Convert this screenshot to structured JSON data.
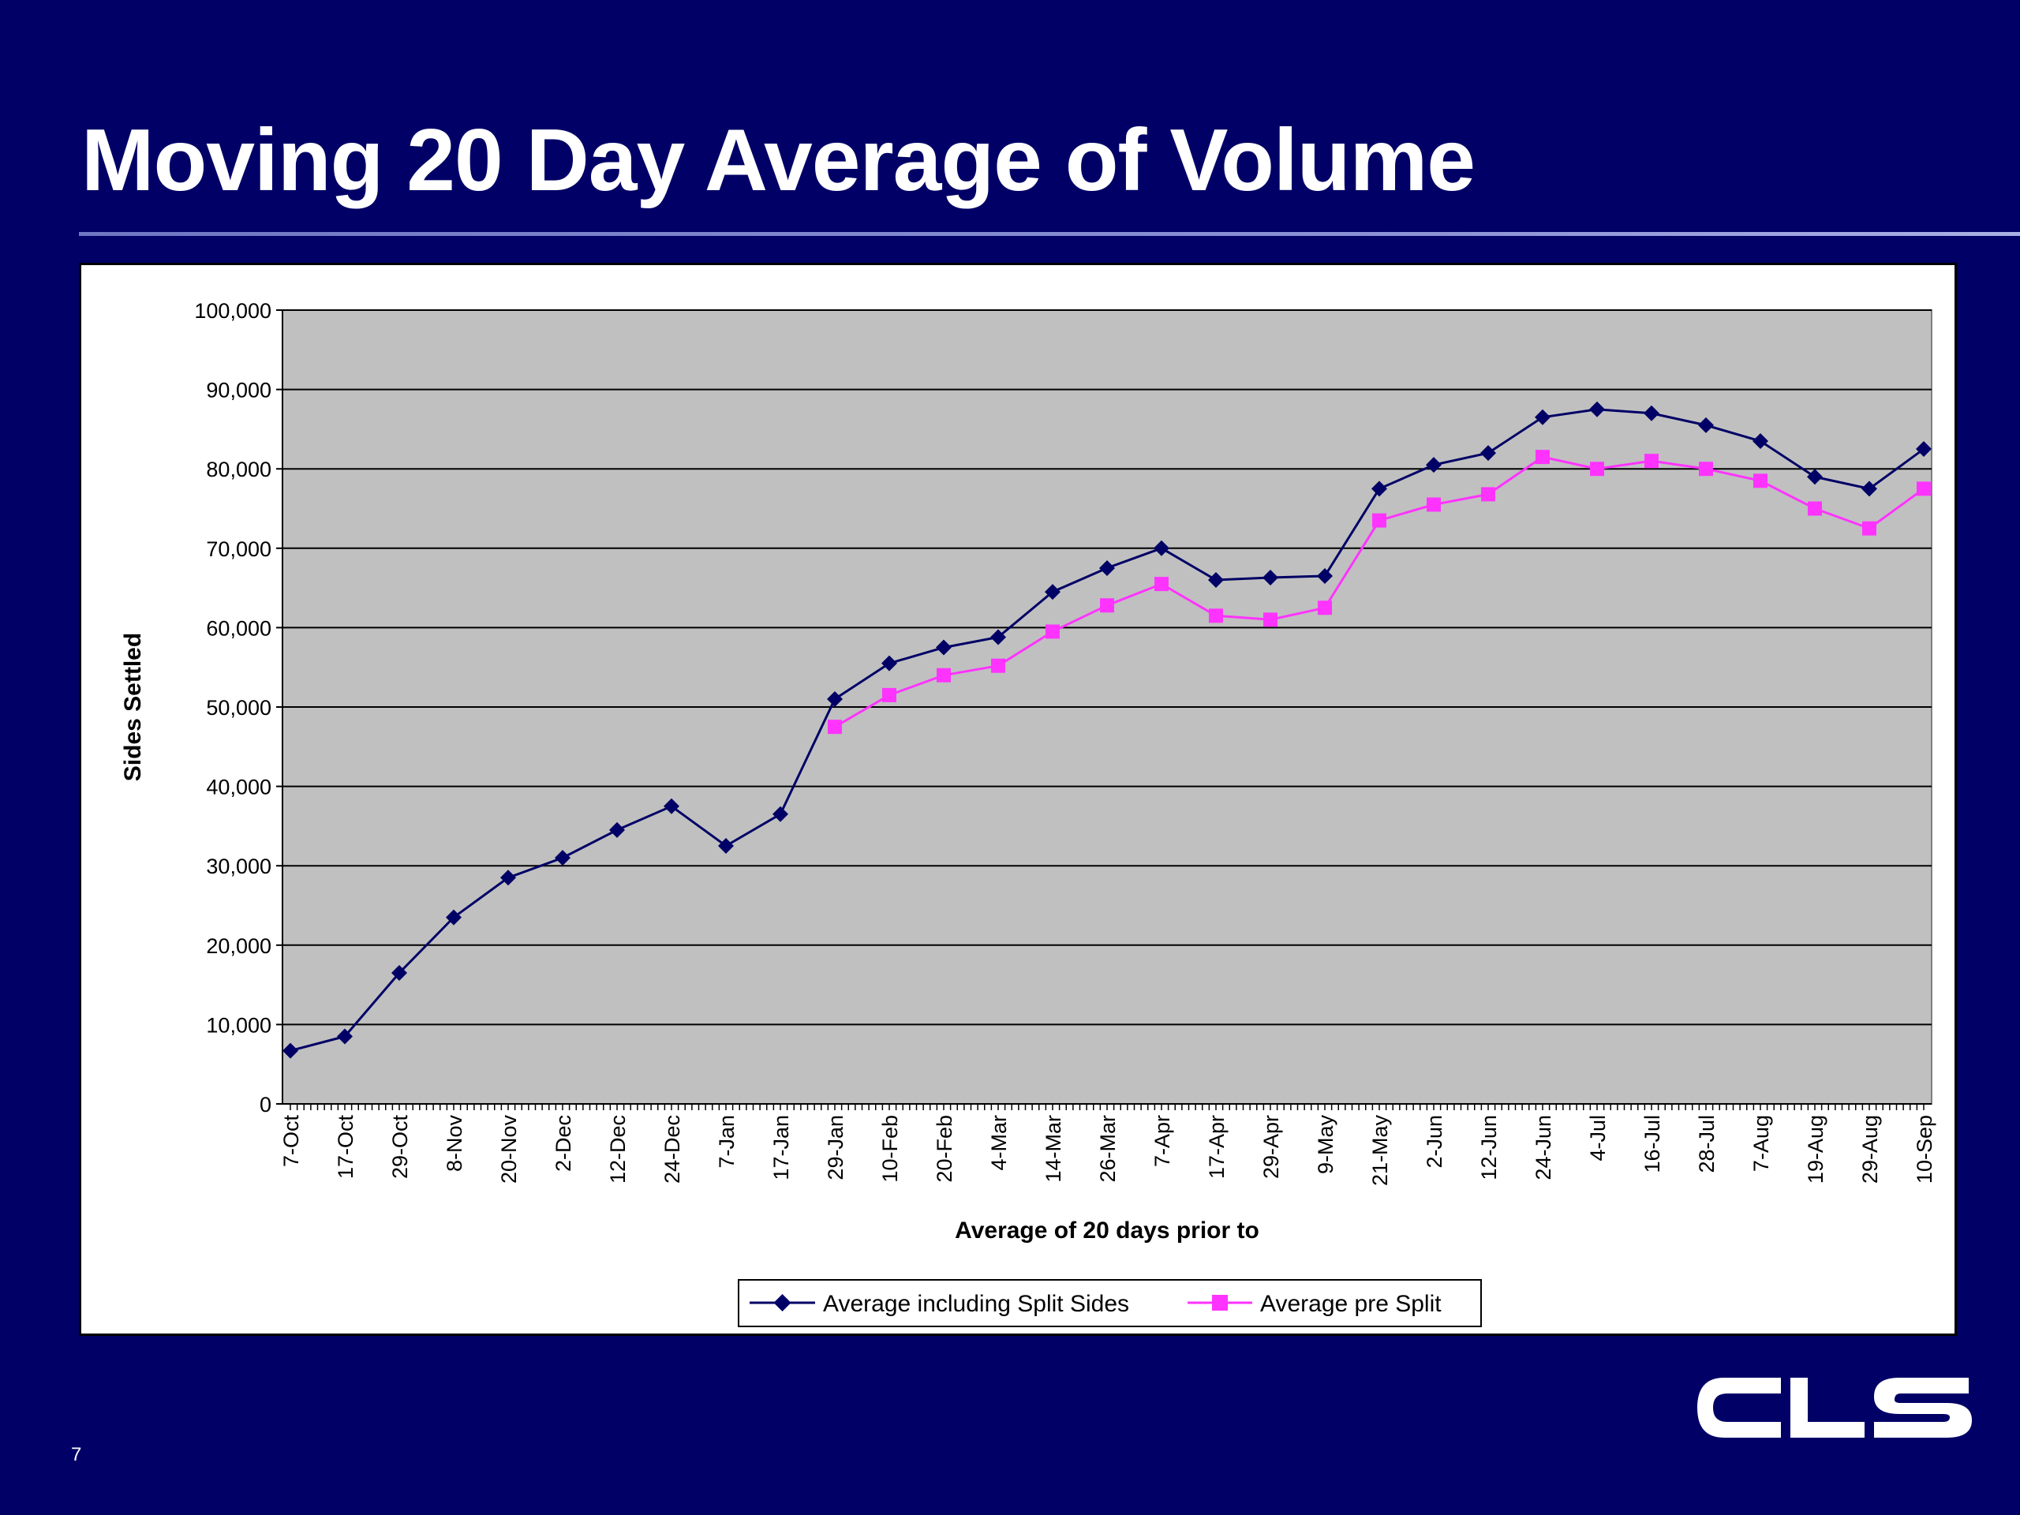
{
  "slide": {
    "title": "Moving 20 Day Average of Volume",
    "page_number": "7",
    "logo_text": "CLS",
    "background_color": "#000066"
  },
  "chart_data": {
    "type": "line",
    "title": "",
    "xlabel": "Average of 20 days prior to",
    "ylabel": "Sides Settled",
    "ylim": [
      0,
      100000
    ],
    "yticks": [
      "0",
      "10,000",
      "20,000",
      "30,000",
      "40,000",
      "50,000",
      "60,000",
      "70,000",
      "80,000",
      "90,000",
      "100,000"
    ],
    "grid": "horizontal",
    "plot_background": "#c0c0c0",
    "legend_position": "bottom",
    "x": [
      "7-Oct",
      "17-Oct",
      "29-Oct",
      "8-Nov",
      "20-Nov",
      "2-Dec",
      "12-Dec",
      "24-Dec",
      "7-Jan",
      "17-Jan",
      "29-Jan",
      "10-Feb",
      "20-Feb",
      "4-Mar",
      "14-Mar",
      "26-Mar",
      "7-Apr",
      "17-Apr",
      "29-Apr",
      "9-May",
      "21-May",
      "2-Jun",
      "12-Jun",
      "24-Jun",
      "4-Jul",
      "16-Jul",
      "28-Jul",
      "7-Aug",
      "19-Aug",
      "29-Aug",
      "10-Sep"
    ],
    "series": [
      {
        "name": "Average including Split Sides",
        "color": "#000066",
        "marker": "diamond",
        "values": [
          6700,
          8500,
          16500,
          23500,
          28500,
          31000,
          34500,
          37500,
          32500,
          36500,
          51000,
          55500,
          57500,
          58800,
          64500,
          67500,
          70000,
          66000,
          66300,
          66500,
          77500,
          80500,
          82000,
          86500,
          87500,
          87000,
          85500,
          83500,
          79000,
          77500,
          82500
        ]
      },
      {
        "name": "Average pre Split",
        "color": "#ff33ff",
        "marker": "square",
        "values": [
          null,
          null,
          null,
          null,
          null,
          null,
          null,
          null,
          null,
          null,
          47500,
          51500,
          54000,
          55200,
          59500,
          62800,
          65500,
          61500,
          61000,
          62500,
          73500,
          75500,
          76800,
          81500,
          80000,
          81000,
          80000,
          78500,
          75000,
          72500,
          77500
        ]
      }
    ]
  }
}
